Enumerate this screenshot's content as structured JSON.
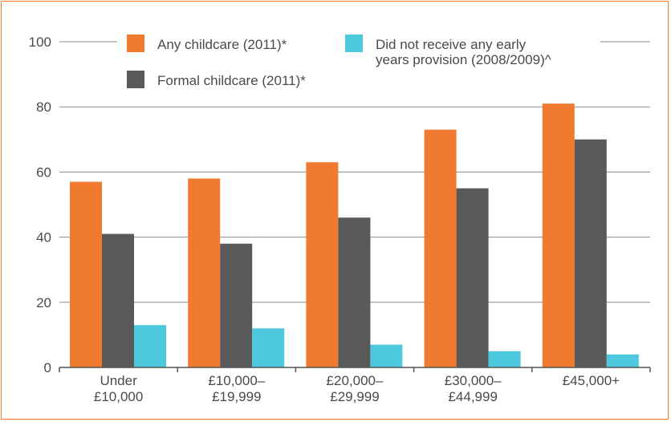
{
  "chart_data": {
    "type": "bar",
    "categories": [
      [
        "Under",
        "£10,000"
      ],
      [
        "£10,000–",
        "£19,999"
      ],
      [
        "£20,000–",
        "£29,999"
      ],
      [
        "£30,000–",
        "£44,999"
      ],
      [
        "£45,000+"
      ]
    ],
    "series": [
      {
        "name": "Any childcare (2011)*",
        "color": "#f07a30",
        "values": [
          57,
          58,
          63,
          73,
          81
        ]
      },
      {
        "name": "Formal childcare (2011)*",
        "color": "#595959",
        "values": [
          41,
          38,
          46,
          55,
          70
        ]
      },
      {
        "name_lines": [
          "Did not receive any early",
          "years provision (2008/2009)^"
        ],
        "color": "#4dc8dc",
        "values": [
          13,
          12,
          7,
          5,
          4
        ]
      }
    ],
    "yticks": [
      "0",
      "20",
      "40",
      "60",
      "80",
      "100"
    ],
    "ylim": [
      0,
      100
    ],
    "grid": true,
    "legend_position": "top"
  }
}
